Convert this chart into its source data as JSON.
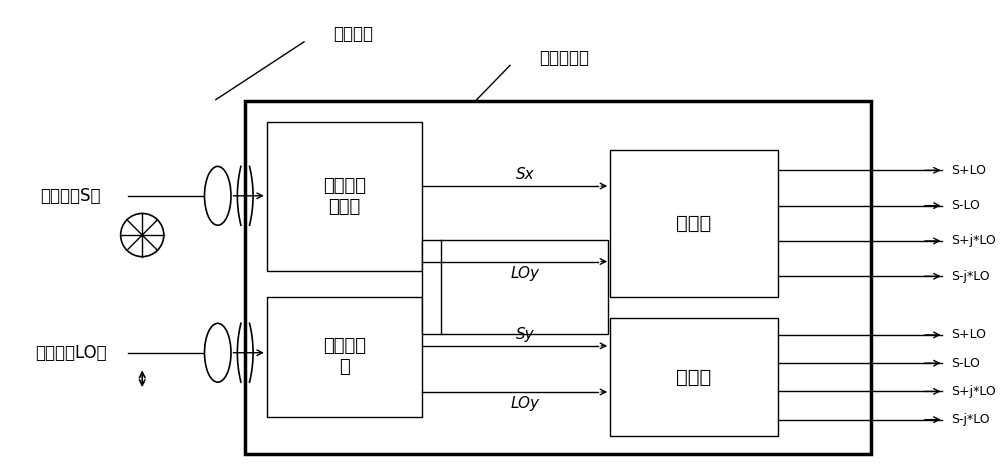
{
  "bg_color": "#ffffff",
  "line_color": "#000000",
  "box_color": "#ffffff",
  "label_signal": "信号光（S）",
  "label_lo": "本振光（LO）",
  "label_pbs": "偏振分光\n旋转器",
  "label_ps": "功率分光\n器",
  "label_mixer1": "混频器",
  "label_mixer2": "混频器",
  "label_coupler": "耦合透镜",
  "label_waveguide": "波导光组件",
  "label_Sx": "Sx",
  "label_LOy1": "LOy",
  "label_Sy": "Sy",
  "label_LOy2": "LOy",
  "outputs_top": [
    "S+LO",
    "S-LO",
    "S+j*LO",
    "S-j*LO"
  ],
  "outputs_bot": [
    "S+LO",
    "S-LO",
    "S+j*LO",
    "S-j*LO"
  ]
}
